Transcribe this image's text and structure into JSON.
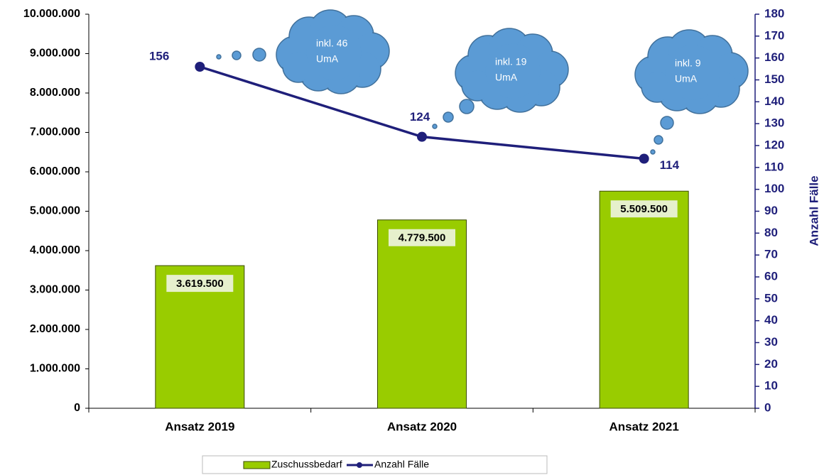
{
  "chart_data": {
    "type": "bar-line",
    "categories": [
      "Ansatz 2019",
      "Ansatz 2020",
      "Ansatz 2021"
    ],
    "series": [
      {
        "name": "Zuschussbedarf",
        "type": "bar",
        "color": "#99cc00",
        "values": [
          3619500,
          4779500,
          5509500
        ],
        "value_labels": [
          "3.619.500",
          "4.779.500",
          "5.509.500"
        ]
      },
      {
        "name": "Anzahl Fälle",
        "type": "line",
        "axis": "y2",
        "color": "#1f1f7a",
        "values": [
          156,
          124,
          114
        ]
      }
    ],
    "ylim": [
      0,
      10000000
    ],
    "yticks": [
      0,
      {
        "value": 1000000,
        "label": "1.000.000"
      },
      {
        "value": 2000000,
        "label": "2.000.000"
      },
      {
        "value": 3000000,
        "label": "3.000.000"
      },
      {
        "value": 4000000,
        "label": "4.000.000"
      },
      {
        "value": 5000000,
        "label": "5.000.000"
      },
      {
        "value": 6000000,
        "label": "6.000.000"
      },
      {
        "value": 7000000,
        "label": "7.000.000"
      },
      {
        "value": 8000000,
        "label": "8.000.000"
      },
      {
        "value": 9000000,
        "label": "9.000.000"
      },
      {
        "value": 10000000,
        "label": "10.000.000"
      }
    ],
    "y2lim": [
      0,
      180
    ],
    "y2ticks": [
      0,
      10,
      20,
      30,
      40,
      50,
      60,
      70,
      80,
      90,
      100,
      110,
      120,
      130,
      140,
      150,
      160,
      170,
      180
    ],
    "y2label": "Anzahl Fälle",
    "annotations": [
      [
        "inkl. 46",
        "UmA"
      ],
      [
        "inkl. 19",
        "UmA"
      ],
      [
        "inkl. 9",
        "UmA"
      ]
    ],
    "legend": "bottom"
  }
}
